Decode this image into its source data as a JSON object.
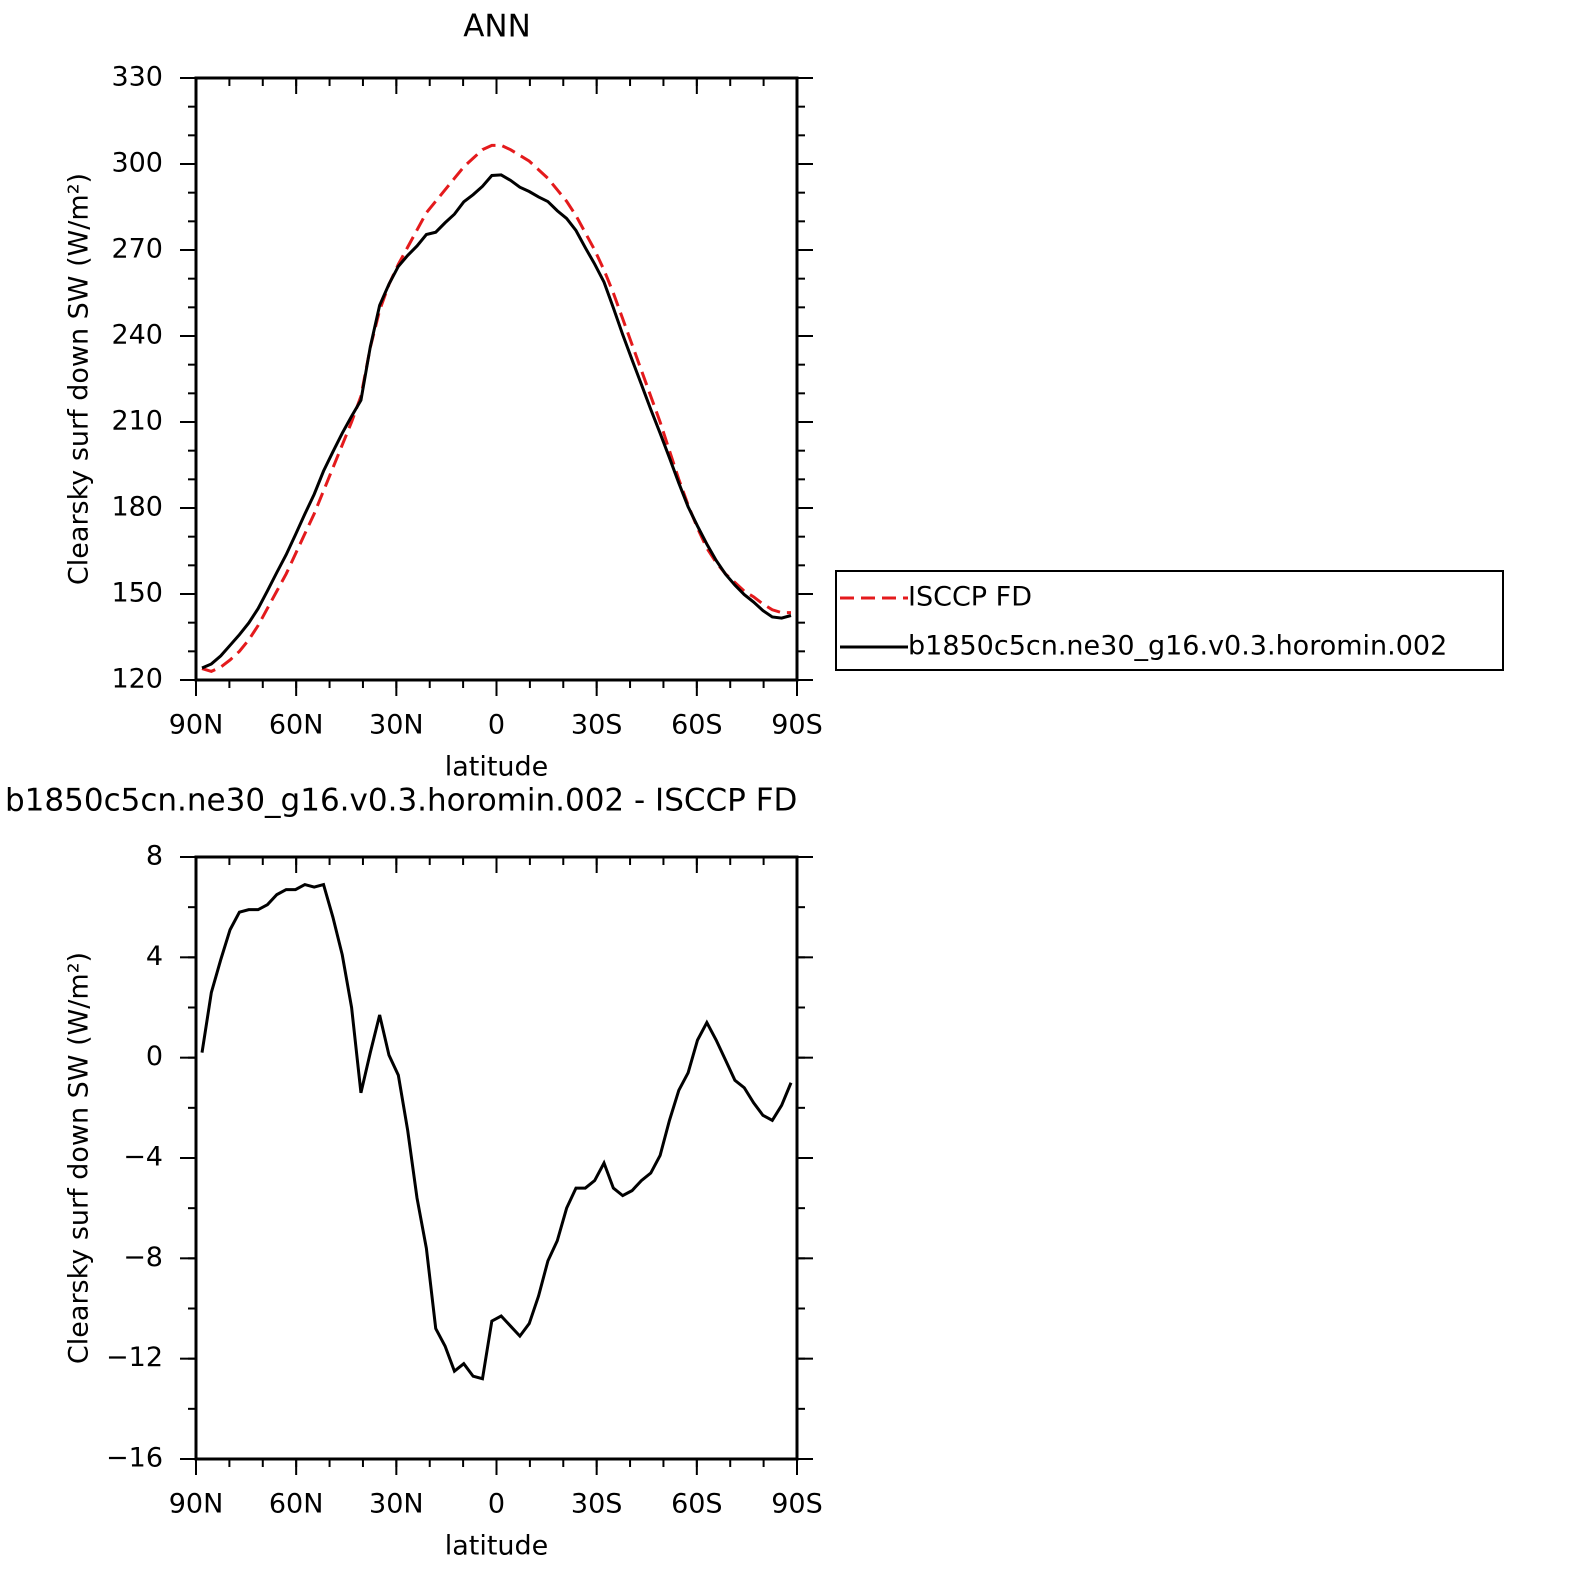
{
  "chart_data": [
    {
      "type": "line",
      "title": "ANN",
      "xlabel": "latitude",
      "ylabel": "Clearsky surf down SW (W/m²)",
      "x": [
        88.2,
        85.4,
        82.6,
        79.8,
        77.0,
        74.2,
        71.4,
        68.6,
        65.8,
        63.0,
        60.2,
        57.4,
        54.6,
        51.8,
        49.0,
        46.2,
        43.4,
        40.6,
        37.8,
        35.0,
        32.2,
        29.4,
        26.6,
        23.8,
        21.0,
        18.2,
        15.4,
        12.6,
        9.8,
        7.0,
        4.2,
        1.4,
        -1.4,
        -4.2,
        -7.0,
        -9.8,
        -12.6,
        -15.4,
        -18.2,
        -21.0,
        -23.8,
        -26.6,
        -29.4,
        -32.2,
        -35.0,
        -37.8,
        -40.6,
        -43.4,
        -46.2,
        -49.0,
        -51.8,
        -54.6,
        -57.4,
        -60.2,
        -63.0,
        -65.8,
        -68.6,
        -71.4,
        -74.2,
        -77.0,
        -79.8,
        -82.6,
        -85.4,
        -88.2
      ],
      "series": [
        {
          "name": "ISCCP FD",
          "color": "#e41a1c",
          "style": "dashed",
          "values": [
            124,
            123,
            124.5,
            127,
            130,
            134,
            139,
            145,
            151,
            157,
            164,
            171,
            178,
            186,
            194,
            202,
            210,
            219,
            236,
            249,
            258,
            265,
            271,
            277,
            283,
            287,
            291,
            295,
            299,
            302,
            305,
            306.5,
            306.5,
            305,
            303,
            301,
            298,
            295,
            291,
            287,
            282,
            276,
            270,
            263,
            255,
            246,
            237,
            228,
            219,
            210,
            200,
            190,
            181,
            173,
            166,
            161,
            157,
            154,
            151,
            149,
            146.5,
            144.5,
            143.5,
            143.5
          ]
        },
        {
          "name": "b1850c5cn.ne30_g16.v0.3.horomin.002",
          "color": "#000000",
          "style": "solid",
          "values": [
            124.2,
            125.6,
            128.4,
            132.1,
            135.8,
            139.9,
            144.9,
            151.1,
            157.5,
            163.7,
            170.7,
            177.9,
            184.8,
            192.9,
            199.6,
            206.1,
            212.0,
            217.6,
            236.2,
            250.7,
            258.1,
            264.3,
            268.1,
            271.4,
            275.4,
            276.2,
            279.5,
            282.5,
            286.8,
            289.3,
            292.2,
            296.0,
            296.2,
            294.3,
            291.9,
            290.4,
            288.5,
            286.9,
            283.7,
            281.0,
            276.8,
            270.8,
            265.1,
            258.8,
            249.8,
            240.5,
            231.7,
            223.1,
            214.4,
            206.1,
            197.5,
            188.7,
            180.4,
            173.7,
            167.4,
            161.7,
            156.9,
            153.1,
            149.8,
            147.2,
            144.2,
            142.0,
            141.6,
            142.5
          ]
        }
      ],
      "xlim": [
        90,
        -90
      ],
      "xticks": [
        {
          "value": 90,
          "label": "90N"
        },
        {
          "value": 60,
          "label": "60N"
        },
        {
          "value": 30,
          "label": "30N"
        },
        0,
        {
          "value": -30,
          "label": "30S"
        },
        {
          "value": -60,
          "label": "60S"
        },
        {
          "value": -90,
          "label": "90S"
        }
      ],
      "ylim": [
        120,
        330
      ],
      "yticks": [
        120,
        150,
        180,
        210,
        240,
        270,
        300,
        330
      ],
      "legend": "right"
    },
    {
      "type": "line",
      "title": "b1850c5cn.ne30_g16.v0.3.horomin.002 - ISCCP FD",
      "xlabel": "latitude",
      "ylabel": "Clearsky surf down SW (W/m²)",
      "x": [
        88.2,
        85.4,
        82.6,
        79.8,
        77.0,
        74.2,
        71.4,
        68.6,
        65.8,
        63.0,
        60.2,
        57.4,
        54.6,
        51.8,
        49.0,
        46.2,
        43.4,
        40.6,
        37.8,
        35.0,
        32.2,
        29.4,
        26.6,
        23.8,
        21.0,
        18.2,
        15.4,
        12.6,
        9.8,
        7.0,
        4.2,
        1.4,
        -1.4,
        -4.2,
        -7.0,
        -9.8,
        -12.6,
        -15.4,
        -18.2,
        -21.0,
        -23.8,
        -26.6,
        -29.4,
        -32.2,
        -35.0,
        -37.8,
        -40.6,
        -43.4,
        -46.2,
        -49.0,
        -51.8,
        -54.6,
        -57.4,
        -60.2,
        -63.0,
        -65.8,
        -68.6,
        -71.4,
        -74.2,
        -77.0,
        -79.8,
        -82.6,
        -85.4,
        -88.2
      ],
      "series": [
        {
          "color": "#000000",
          "style": "solid",
          "values": [
            0.2,
            2.6,
            3.9,
            5.1,
            5.8,
            5.9,
            5.9,
            6.1,
            6.5,
            6.7,
            6.7,
            6.9,
            6.8,
            6.9,
            5.6,
            4.1,
            2.0,
            -1.4,
            0.2,
            1.7,
            0.1,
            -0.7,
            -2.9,
            -5.6,
            -7.6,
            -10.8,
            -11.5,
            -12.5,
            -12.2,
            -12.7,
            -12.8,
            -10.5,
            -10.3,
            -10.7,
            -11.1,
            -10.6,
            -9.5,
            -8.1,
            -7.3,
            -6.0,
            -5.2,
            -5.2,
            -4.9,
            -4.2,
            -5.2,
            -5.5,
            -5.3,
            -4.9,
            -4.6,
            -3.9,
            -2.5,
            -1.3,
            -0.6,
            0.7,
            1.4,
            0.7,
            -0.1,
            -0.9,
            -1.2,
            -1.8,
            -2.3,
            -2.5,
            -1.9,
            -1.0
          ]
        }
      ],
      "xlim": [
        90,
        -90
      ],
      "xticks": [
        {
          "value": 90,
          "label": "90N"
        },
        {
          "value": 60,
          "label": "60N"
        },
        {
          "value": 30,
          "label": "30N"
        },
        0,
        {
          "value": -30,
          "label": "30S"
        },
        {
          "value": -60,
          "label": "60S"
        },
        {
          "value": -90,
          "label": "90S"
        }
      ],
      "ylim": [
        -16,
        8
      ],
      "yticks": [
        -16,
        -12,
        -8,
        -4,
        0,
        4,
        8
      ]
    }
  ]
}
